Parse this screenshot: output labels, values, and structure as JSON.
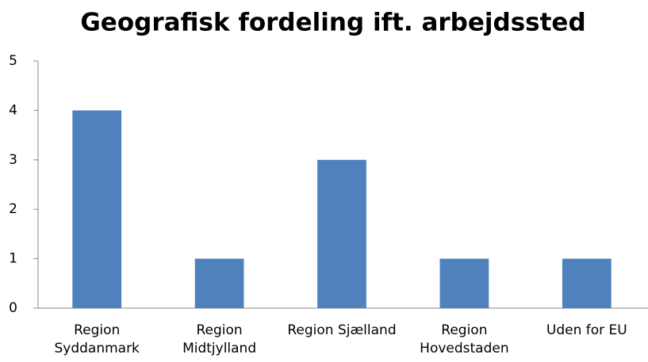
{
  "chart_data": {
    "type": "bar",
    "title": "Geografisk fordeling ift. arbejdssted",
    "categories": [
      "Region Syddanmark",
      "Region Midtjylland",
      "Region Sjælland",
      "Region Hovedstaden",
      "Uden for EU"
    ],
    "values": [
      4,
      1,
      3,
      1,
      1
    ],
    "color": "#4f81bd",
    "ylim": [
      0,
      5
    ],
    "yticks": [
      0,
      1,
      2,
      3,
      4,
      5
    ],
    "grid": false
  }
}
